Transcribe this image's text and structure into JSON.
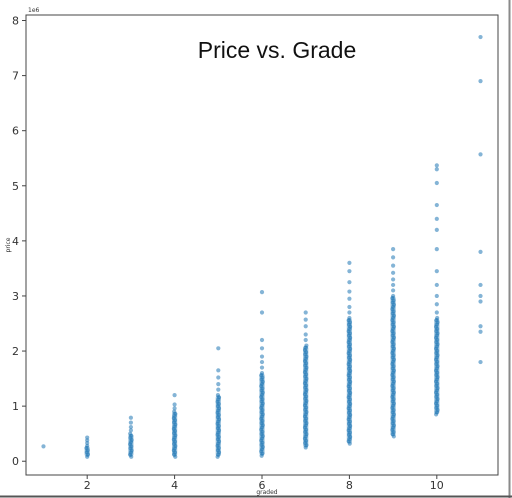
{
  "chart_data": {
    "type": "scatter",
    "title": "Price vs. Grade",
    "xlabel": "graded",
    "ylabel": "price",
    "y_offset_label": "1e6",
    "xlim": [
      0.6,
      11.4
    ],
    "ylim": [
      -0.25,
      8.1
    ],
    "x_ticks": [
      2,
      4,
      6,
      8,
      10
    ],
    "y_ticks": [
      0,
      1,
      2,
      3,
      4,
      5,
      6,
      7,
      8
    ],
    "grid": false,
    "legend": "none",
    "point_color": "#1f77b4",
    "series": [
      {
        "bands": [
          {
            "x": 1,
            "min": 0.27,
            "max": 0.27,
            "outliers": []
          },
          {
            "x": 2,
            "min": 0.08,
            "max": 0.28,
            "outliers": [
              0.33,
              0.38,
              0.43
            ]
          },
          {
            "x": 3,
            "min": 0.08,
            "max": 0.5,
            "outliers": [
              0.56,
              0.62,
              0.7,
              0.79
            ]
          },
          {
            "x": 4,
            "min": 0.08,
            "max": 0.9,
            "outliers": [
              0.96,
              1.03,
              1.2
            ]
          },
          {
            "x": 5,
            "min": 0.08,
            "max": 1.2,
            "outliers": [
              1.3,
              1.4,
              1.52,
              1.65,
              2.05
            ]
          },
          {
            "x": 6,
            "min": 0.1,
            "max": 1.6,
            "outliers": [
              1.7,
              1.8,
              1.9,
              2.05,
              2.2,
              2.7,
              3.07
            ]
          },
          {
            "x": 7,
            "min": 0.25,
            "max": 2.1,
            "outliers": [
              2.2,
              2.3,
              2.45,
              2.57,
              2.7
            ]
          },
          {
            "x": 8,
            "min": 0.32,
            "max": 2.6,
            "outliers": [
              2.7,
              2.8,
              2.95,
              3.08,
              3.25,
              3.45,
              3.6
            ]
          },
          {
            "x": 9,
            "min": 0.45,
            "max": 3.0,
            "outliers": [
              3.1,
              3.2,
              3.3,
              3.42,
              3.55,
              3.7,
              3.85
            ]
          },
          {
            "x": 10,
            "min": 0.85,
            "max": 2.6,
            "outliers": [
              2.7,
              2.85,
              3.0,
              3.2,
              3.45,
              3.85,
              4.2,
              4.4,
              4.65,
              5.05,
              5.3,
              5.37
            ]
          },
          {
            "x": 11,
            "min": 1.8,
            "max": 1.8,
            "outliers": [
              2.35,
              2.45,
              2.9,
              3.0,
              3.2,
              3.8,
              5.57,
              6.9,
              7.7
            ]
          }
        ]
      }
    ]
  }
}
